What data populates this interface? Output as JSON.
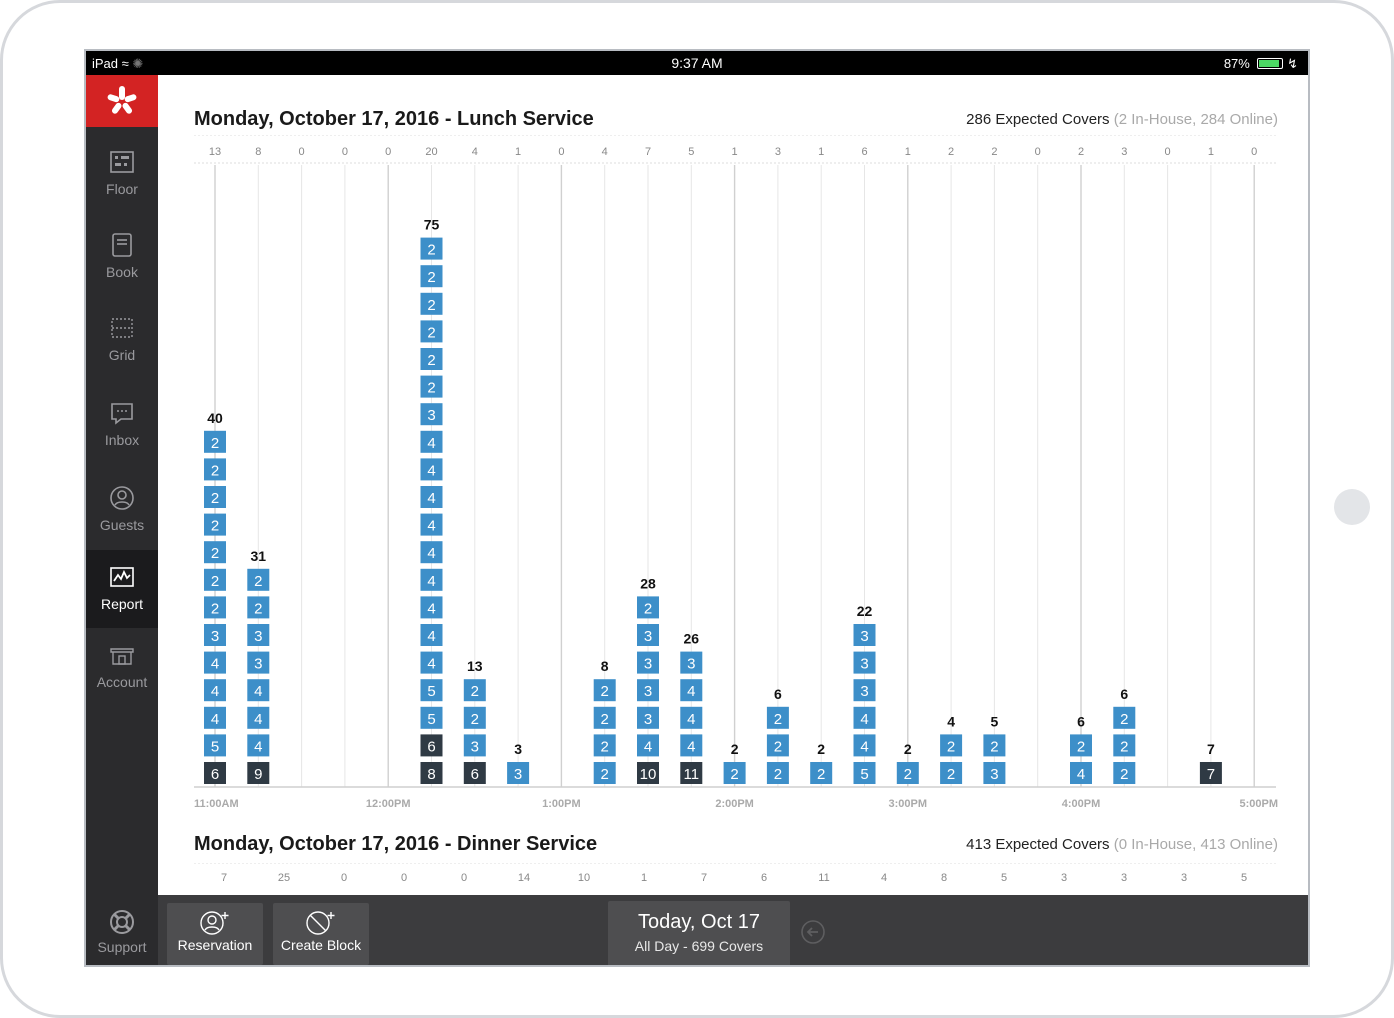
{
  "status": {
    "device": "iPad",
    "time": "9:37 AM",
    "battery": "87%"
  },
  "nav": {
    "floor": "Floor",
    "book": "Book",
    "grid": "Grid",
    "inbox": "Inbox",
    "guests": "Guests",
    "report": "Report",
    "account": "Account",
    "support": "Support"
  },
  "lunch": {
    "title": "Monday, October 17, 2016 - Lunch Service",
    "covers_label": "286 Expected Covers",
    "covers_detail": "(2 In-House, 284 Online)"
  },
  "dinner": {
    "title": "Monday, October 17, 2016 - Dinner Service",
    "covers_label": "413 Expected Covers",
    "covers_detail": "(0 In-House, 413 Online)",
    "top_counts": [
      "7",
      "25",
      "0",
      "0",
      "0",
      "14",
      "10",
      "1",
      "7",
      "6",
      "11",
      "4",
      "8",
      "5",
      "3",
      "3",
      "3",
      "5"
    ]
  },
  "bottom": {
    "reservation": "Reservation",
    "create_block": "Create Block",
    "today": "Today, Oct 17",
    "today_sub": "All Day - 699 Covers"
  },
  "colors": {
    "party": "#3d8fc9",
    "seated": "#2f3a44",
    "brand": "#d32323"
  },
  "chart_data": {
    "type": "bar",
    "title": "Monday, October 17, 2016 - Lunch Service",
    "x_ticks": [
      "11:00AM",
      "12:00PM",
      "1:00PM",
      "2:00PM",
      "3:00PM",
      "4:00PM",
      "5:00PM"
    ],
    "slot_counts": [
      "13",
      "8",
      "0",
      "0",
      "0",
      "20",
      "4",
      "1",
      "0",
      "4",
      "7",
      "5",
      "1",
      "3",
      "1",
      "6",
      "1",
      "2",
      "2",
      "0",
      "2",
      "3",
      "0",
      "1",
      "0"
    ],
    "slot_totals": [
      40,
      31,
      0,
      0,
      0,
      75,
      13,
      3,
      0,
      8,
      28,
      26,
      2,
      6,
      2,
      22,
      2,
      4,
      5,
      0,
      6,
      6,
      0,
      7,
      0
    ],
    "slots": [
      {
        "bottom": {
          "v": "6",
          "dark": true
        },
        "stack": [
          "5",
          "4",
          "4",
          "4",
          "3",
          "2",
          "2",
          "2",
          "2",
          "2",
          "2",
          "2"
        ]
      },
      {
        "bottom": {
          "v": "9",
          "dark": true
        },
        "stack": [
          "4",
          "4",
          "4",
          "3",
          "3",
          "2",
          "2"
        ]
      },
      {
        "bottom": null,
        "stack": []
      },
      {
        "bottom": null,
        "stack": []
      },
      {
        "bottom": null,
        "stack": []
      },
      {
        "bottom": {
          "v": "8",
          "dark": true
        },
        "stack": [
          "6d",
          "5",
          "5",
          "4",
          "4",
          "4",
          "4",
          "4",
          "4",
          "4",
          "4",
          "4",
          "3",
          "2",
          "2",
          "2",
          "2",
          "2",
          "2"
        ]
      },
      {
        "bottom": {
          "v": "6",
          "dark": true
        },
        "stack": [
          "3",
          "2",
          "2"
        ]
      },
      {
        "bottom": {
          "v": "3",
          "dark": false
        },
        "stack": []
      },
      {
        "bottom": null,
        "stack": []
      },
      {
        "bottom": {
          "v": "2",
          "dark": false
        },
        "stack": [
          "2",
          "2",
          "2"
        ]
      },
      {
        "bottom": {
          "v": "10",
          "dark": true
        },
        "stack": [
          "4",
          "3",
          "3",
          "3",
          "3",
          "2"
        ]
      },
      {
        "bottom": {
          "v": "11",
          "dark": true
        },
        "stack": [
          "4",
          "4",
          "4",
          "3"
        ]
      },
      {
        "bottom": {
          "v": "2",
          "dark": false
        },
        "stack": []
      },
      {
        "bottom": {
          "v": "2",
          "dark": false
        },
        "stack": [
          "2",
          "2"
        ]
      },
      {
        "bottom": {
          "v": "2",
          "dark": false
        },
        "stack": []
      },
      {
        "bottom": {
          "v": "5",
          "dark": false
        },
        "stack": [
          "4",
          "4",
          "3",
          "3",
          "3"
        ]
      },
      {
        "bottom": {
          "v": "2",
          "dark": false
        },
        "stack": []
      },
      {
        "bottom": {
          "v": "2",
          "dark": false
        },
        "stack": [
          "2"
        ]
      },
      {
        "bottom": {
          "v": "3",
          "dark": false
        },
        "stack": [
          "2"
        ]
      },
      {
        "bottom": null,
        "stack": []
      },
      {
        "bottom": {
          "v": "4",
          "dark": false
        },
        "stack": [
          "2"
        ]
      },
      {
        "bottom": {
          "v": "2",
          "dark": false
        },
        "stack": [
          "2",
          "2"
        ]
      },
      {
        "bottom": null,
        "stack": []
      },
      {
        "bottom": {
          "v": "7",
          "dark": true
        },
        "stack": []
      },
      {
        "bottom": null,
        "stack": []
      }
    ]
  }
}
